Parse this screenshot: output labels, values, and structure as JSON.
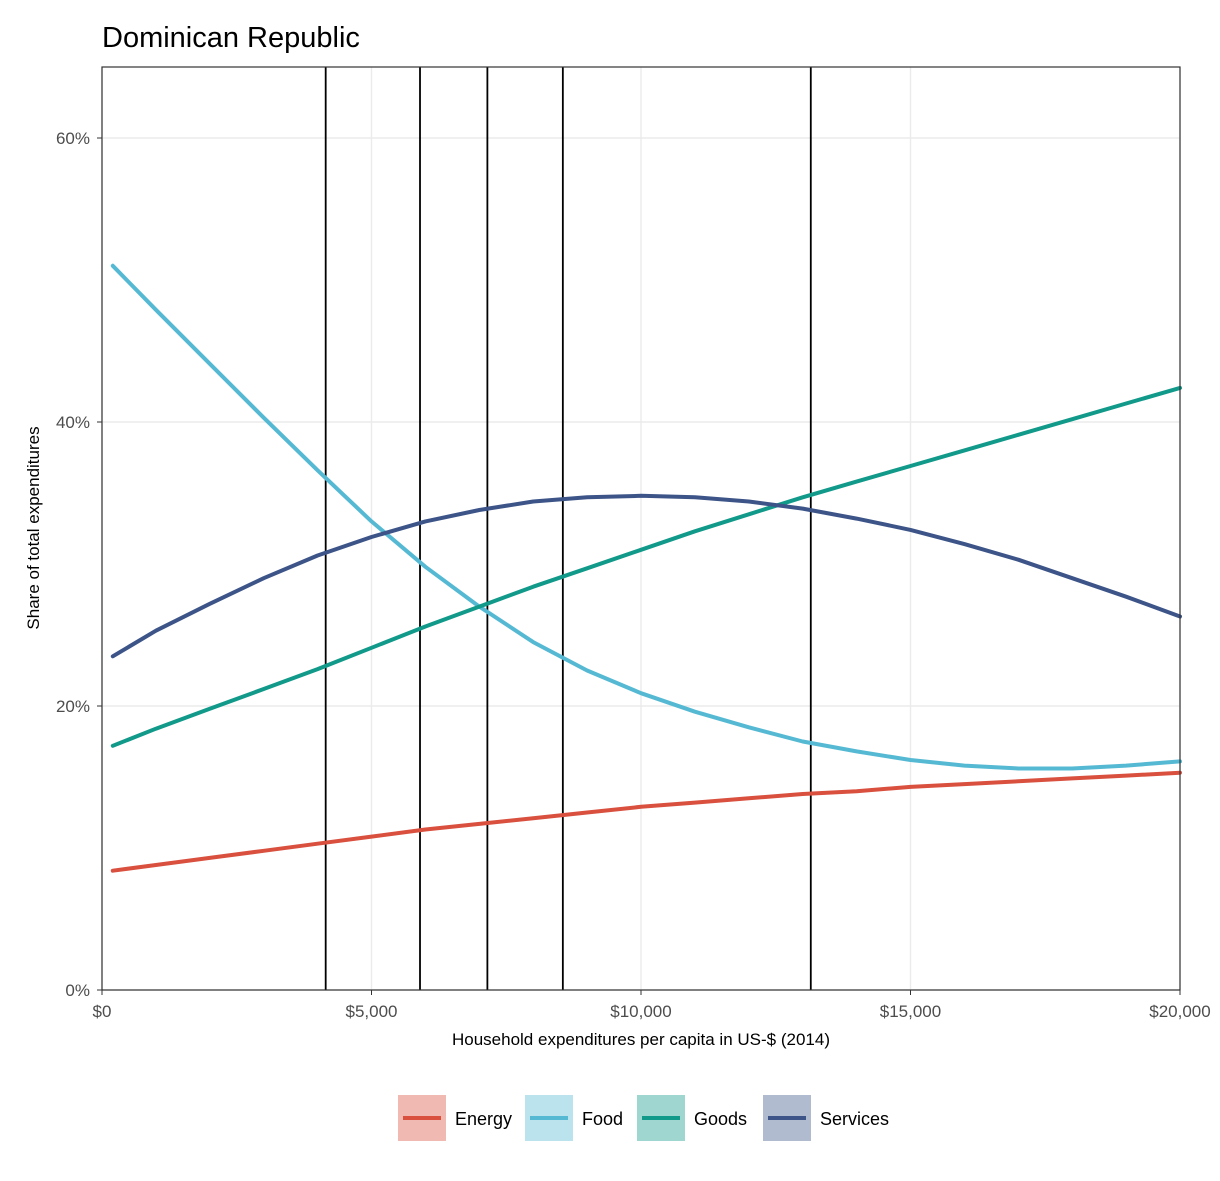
{
  "chart_data": {
    "type": "line",
    "title": "Dominican Republic",
    "xlabel": "Household expenditures per capita in US-$ (2014)",
    "ylabel": "Share of total expenditures",
    "xlim": [
      0,
      20000
    ],
    "ylim": [
      0,
      0.65
    ],
    "x_ticks": [
      0,
      5000,
      10000,
      15000,
      20000
    ],
    "x_tick_labels": [
      "$0",
      "$5,000",
      "$10,000",
      "$15,000",
      "$20,000"
    ],
    "y_ticks": [
      0,
      0.2,
      0.4,
      0.6
    ],
    "y_tick_labels": [
      "0%",
      "20%",
      "40%",
      "60%"
    ],
    "grid": true,
    "legend_position": "bottom",
    "vlines": [
      4150,
      5900,
      7150,
      8550,
      13150
    ],
    "x": [
      200,
      1000,
      2000,
      3000,
      4000,
      5000,
      6000,
      7000,
      8000,
      9000,
      10000,
      11000,
      12000,
      13000,
      14000,
      15000,
      16000,
      17000,
      18000,
      19000,
      20000
    ],
    "series": [
      {
        "name": "Energy",
        "color": "#d9503f",
        "values": [
          0.084,
          0.088,
          0.093,
          0.098,
          0.103,
          0.108,
          0.113,
          0.117,
          0.121,
          0.125,
          0.129,
          0.132,
          0.135,
          0.138,
          0.14,
          0.143,
          0.145,
          0.147,
          0.149,
          0.151,
          0.153
        ]
      },
      {
        "name": "Food",
        "color": "#55b9d3",
        "values": [
          0.51,
          0.479,
          0.441,
          0.403,
          0.366,
          0.33,
          0.298,
          0.27,
          0.245,
          0.225,
          0.209,
          0.196,
          0.185,
          0.175,
          0.168,
          0.162,
          0.158,
          0.156,
          0.156,
          0.158,
          0.161
        ]
      },
      {
        "name": "Goods",
        "color": "#11998a",
        "values": [
          0.172,
          0.184,
          0.198,
          0.212,
          0.226,
          0.241,
          0.256,
          0.27,
          0.284,
          0.297,
          0.31,
          0.323,
          0.335,
          0.347,
          0.358,
          0.369,
          0.38,
          0.391,
          0.402,
          0.413,
          0.424
        ]
      },
      {
        "name": "Services",
        "color": "#3c5488",
        "values": [
          0.235,
          0.253,
          0.272,
          0.29,
          0.306,
          0.319,
          0.33,
          0.338,
          0.344,
          0.347,
          0.348,
          0.347,
          0.344,
          0.339,
          0.332,
          0.324,
          0.314,
          0.303,
          0.29,
          0.277,
          0.263
        ]
      }
    ]
  }
}
